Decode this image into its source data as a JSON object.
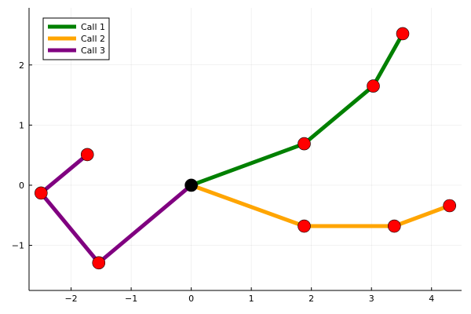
{
  "chart_data": {
    "type": "line",
    "title": "",
    "xlabel": "",
    "ylabel": "",
    "xlim": [
      -2.7,
      4.5
    ],
    "ylim": [
      -1.75,
      2.95
    ],
    "xticks": [
      -2,
      -1,
      0,
      1,
      2,
      3,
      4
    ],
    "yticks": [
      -1,
      0,
      1,
      2
    ],
    "xtick_labels": [
      "−2",
      "−1",
      "0",
      "1",
      "2",
      "3",
      "4"
    ],
    "ytick_labels": [
      "−1",
      "0",
      "1",
      "2"
    ],
    "grid": true,
    "legend_position": "top-left",
    "origin_point": {
      "x": 0,
      "y": 0,
      "color": "#000000"
    },
    "marker_color": "#ff0000",
    "series": [
      {
        "name": "Call 1",
        "color": "#008000",
        "points": [
          [
            0,
            0
          ],
          [
            1.88,
            0.69
          ],
          [
            3.03,
            1.65
          ],
          [
            3.52,
            2.52
          ]
        ]
      },
      {
        "name": "Call 2",
        "color": "#ffa500",
        "points": [
          [
            0,
            0
          ],
          [
            1.88,
            -0.68
          ],
          [
            3.38,
            -0.68
          ],
          [
            4.3,
            -0.34
          ]
        ]
      },
      {
        "name": "Call 3",
        "color": "#800080",
        "points": [
          [
            0,
            0
          ],
          [
            -1.54,
            -1.29
          ],
          [
            -2.5,
            -0.13
          ],
          [
            -1.73,
            0.51
          ]
        ]
      }
    ]
  }
}
